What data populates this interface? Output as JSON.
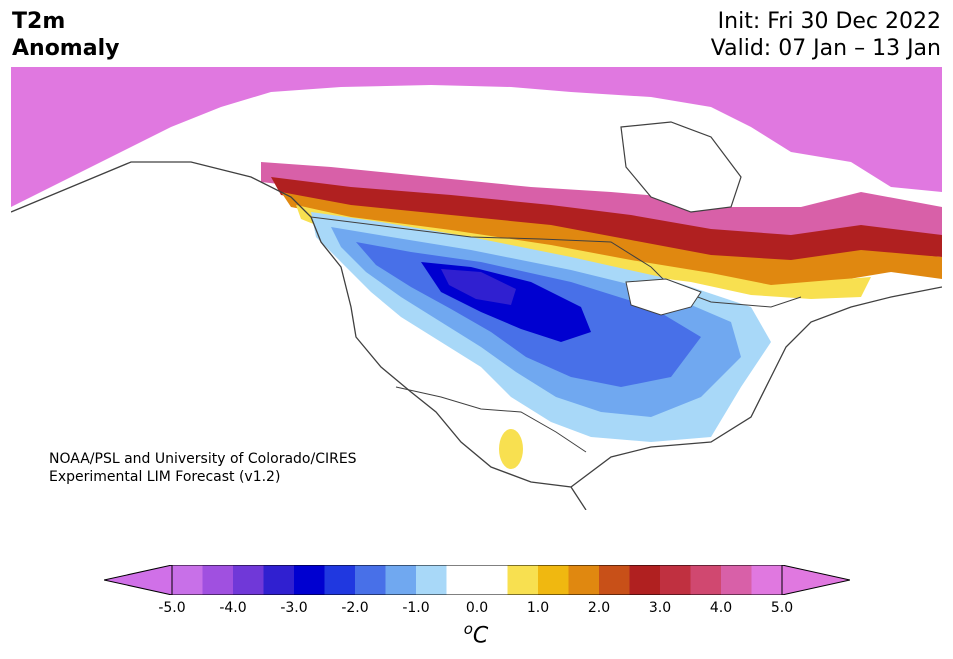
{
  "title": {
    "var": "T2m",
    "kind": "Anomaly",
    "init": "Init: Fri 30 Dec 2022",
    "valid": "Valid: 07 Jan – 13 Jan"
  },
  "credit": {
    "line1": "NOAA/PSL and University of Colorado/CIRES",
    "line2": "Experimental LIM Forecast (v1.2)"
  },
  "colorbar": {
    "ticks": [
      "-5.0",
      "-4.0",
      "-3.0",
      "-2.0",
      "-1.0",
      "0.0",
      "1.0",
      "2.0",
      "3.0",
      "4.0",
      "5.0"
    ],
    "unit_sup": "o",
    "unit": "C",
    "colors": [
      "#c870e8",
      "#a050e0",
      "#7038d8",
      "#3020d0",
      "#0000d0",
      "#2038e0",
      "#4870e8",
      "#70a8f0",
      "#a8d8f8",
      "#ffffff",
      "#ffffff",
      "#f8e050",
      "#f0b810",
      "#e08810",
      "#c85018",
      "#b02020",
      "#c03040",
      "#d04870",
      "#d860a8",
      "#e078e0"
    ],
    "under": "#d070e8",
    "over": "#e078e0"
  },
  "map_colors": {
    "background": "#ffffff",
    "coast": "#404040",
    "strong_warm": "#e078e0"
  }
}
